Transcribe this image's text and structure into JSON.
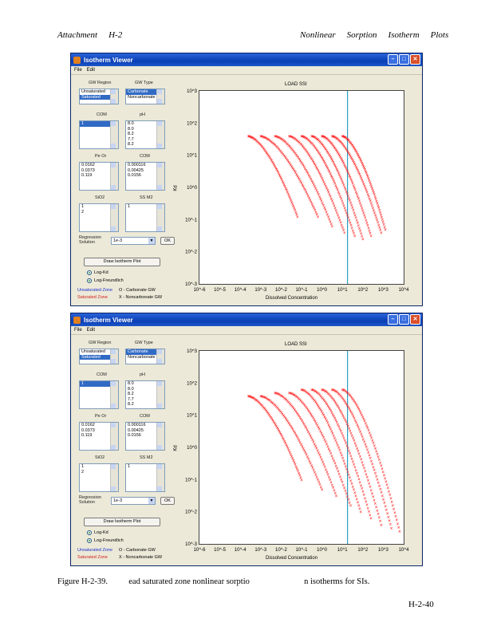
{
  "header": {
    "left": [
      "Attachment",
      "H-2"
    ],
    "right": [
      "Nonlinear",
      "Sorption",
      "Isotherm",
      "Plots"
    ]
  },
  "windows": [
    {
      "title": "Isotherm Viewer",
      "menu": [
        "File",
        "Edit"
      ],
      "labels": {
        "gw_region": "GW Region",
        "gw_type": "GW Type",
        "com": "COM",
        "pe": "pH",
        "pe2": "Pe Or",
        "com2": "COM",
        "sio2": "SiO2",
        "ss": "SS M2",
        "concentration": "Regression Solution",
        "plot_button": "Draw Isotherm Plot"
      },
      "gw_region_items": [
        "Unsaturated",
        "Saturated"
      ],
      "gw_region_selected": 1,
      "gw_type_items": [
        "Carbonate",
        "Noncarbonate"
      ],
      "gw_type_selected": 0,
      "com_items": [
        "1"
      ],
      "ph_items": [
        "8.0",
        "8.0",
        "8.2",
        "7.7",
        "8.2"
      ],
      "pe_items": [
        "0.0162",
        "0.0373",
        "0.119"
      ],
      "com2_items": [
        "0.000116",
        "0.00425",
        "0.0156"
      ],
      "sio2_items": [
        "1",
        "2"
      ],
      "dropdown_value": "1e-3",
      "small_button": "OK",
      "radios": [
        "Log-Kd",
        "Log-Freundlich"
      ],
      "legend": [
        "Unsaturated Zone",
        "Saturated Zone",
        "O - Carbonate GW",
        "X - Noncarbonate GW"
      ],
      "plot_title": "LOAD SSI",
      "ylabel": "Kd",
      "xlabel": "Dissolved Concentration"
    },
    {
      "title": "Isotherm Viewer",
      "menu": [
        "File",
        "Edit"
      ],
      "labels": {
        "gw_region": "GW Region",
        "gw_type": "GW Type",
        "com": "COM",
        "pe": "pH",
        "pe2": "Pe Or",
        "com2": "COM",
        "sio2": "SiO2",
        "ss": "SS M2",
        "concentration": "Regression Solution",
        "plot_button": "Draw Isotherm Plot"
      },
      "gw_region_items": [
        "Unsaturated",
        "Saturated"
      ],
      "gw_region_selected": 1,
      "gw_type_items": [
        "Carbonate",
        "Noncarbonate"
      ],
      "gw_type_selected": 0,
      "com_items": [
        "1"
      ],
      "ph_items": [
        "8.0",
        "8.0",
        "8.2",
        "7.7",
        "8.2"
      ],
      "pe_items": [
        "0.0162",
        "0.0373",
        "0.119"
      ],
      "com2_items": [
        "0.000116",
        "0.00425",
        "0.0156"
      ],
      "sio2_items": [
        "1",
        "2"
      ],
      "dropdown_value": "1e-3",
      "small_button": "OK",
      "radios": [
        "Log-Kd",
        "Log-Freundlich"
      ],
      "legend": [
        "Unsaturated Zone",
        "Saturated Zone",
        "O - Carbonate GW",
        "X - Noncarbonate GW"
      ],
      "plot_title": "LOAD SSI",
      "ylabel": "Kd",
      "xlabel": "Dissolved Concentration"
    }
  ],
  "chart_data": [
    {
      "type": "scatter",
      "title": "LOAD SSI",
      "xlabel": "Dissolved Concentration",
      "ylabel": "Kd",
      "x_scale": "log",
      "y_scale": "log",
      "xticks": [
        "10^-6",
        "10^-5",
        "10^-4",
        "10^-3",
        "10^-2",
        "10^-1",
        "10^0",
        "10^1",
        "10^2",
        "10^3",
        "10^4"
      ],
      "yticks": [
        "10^-3",
        "10^-2",
        "10^-1",
        "10^0",
        "10^1",
        "10^2",
        "10^3"
      ],
      "xlim_exp": [
        -6,
        4
      ],
      "ylim_exp": [
        -3,
        3
      ],
      "vertical_line_x_exp": 1.25,
      "color": "#ff0000",
      "line_color": "#2aa0c0",
      "series_exp": [
        {
          "x0": -3.6,
          "x1": -1.2,
          "y0": 1.6,
          "y1": -0.9
        },
        {
          "x0": -3.0,
          "x1": -0.2,
          "y0": 1.6,
          "y1": -0.9
        },
        {
          "x0": -2.3,
          "x1": 0.5,
          "y0": 1.6,
          "y1": -1.2
        },
        {
          "x0": -1.6,
          "x1": 1.1,
          "y0": 1.6,
          "y1": -1.4
        },
        {
          "x0": -1.0,
          "x1": 1.6,
          "y0": 1.6,
          "y1": -1.5
        },
        {
          "x0": -0.5,
          "x1": 2.0,
          "y0": 1.6,
          "y1": -1.6
        },
        {
          "x0": 0.0,
          "x1": 2.4,
          "y0": 1.6,
          "y1": -1.5
        },
        {
          "x0": 0.5,
          "x1": 2.9,
          "y0": 1.6,
          "y1": -1.4
        },
        {
          "x0": 1.0,
          "x1": 3.1,
          "y0": 1.6,
          "y1": -1.3
        }
      ]
    },
    {
      "type": "scatter",
      "title": "LOAD SSI",
      "xlabel": "Dissolved Concentration",
      "ylabel": "Kd",
      "x_scale": "log",
      "y_scale": "log",
      "xticks": [
        "10^-6",
        "10^-5",
        "10^-4",
        "10^-3",
        "10^-2",
        "10^-1",
        "10^0",
        "10^1",
        "10^2",
        "10^3",
        "10^4"
      ],
      "yticks": [
        "10^-3",
        "10^-2",
        "10^-1",
        "10^0",
        "10^1",
        "10^2",
        "10^3"
      ],
      "xlim_exp": [
        -6,
        4
      ],
      "ylim_exp": [
        -3,
        3
      ],
      "vertical_line_x_exp": 1.25,
      "color": "#ff0000",
      "line_color": "#2aa0c0",
      "series_exp": [
        {
          "x0": -3.6,
          "x1": -1.0,
          "y0": 1.6,
          "y1": -1.0
        },
        {
          "x0": -3.0,
          "x1": 0.0,
          "y0": 1.6,
          "y1": -1.3
        },
        {
          "x0": -2.3,
          "x1": 0.7,
          "y0": 1.7,
          "y1": -1.5
        },
        {
          "x0": -1.6,
          "x1": 1.4,
          "y0": 1.7,
          "y1": -1.8
        },
        {
          "x0": -1.0,
          "x1": 1.9,
          "y0": 1.8,
          "y1": -2.0
        },
        {
          "x0": -0.5,
          "x1": 2.4,
          "y0": 1.8,
          "y1": -2.2
        },
        {
          "x0": 0.0,
          "x1": 2.9,
          "y0": 1.8,
          "y1": -2.4
        },
        {
          "x0": 0.5,
          "x1": 3.4,
          "y0": 1.8,
          "y1": -2.5
        },
        {
          "x0": 1.0,
          "x1": 3.8,
          "y0": 1.8,
          "y1": -2.6
        }
      ]
    }
  ],
  "caption": {
    "label": "Figure H-2-39.",
    "text1": "ead saturated zone nonlinear sorptio",
    "text2": "n isotherms for SIs."
  },
  "page_number": "H-2-40"
}
